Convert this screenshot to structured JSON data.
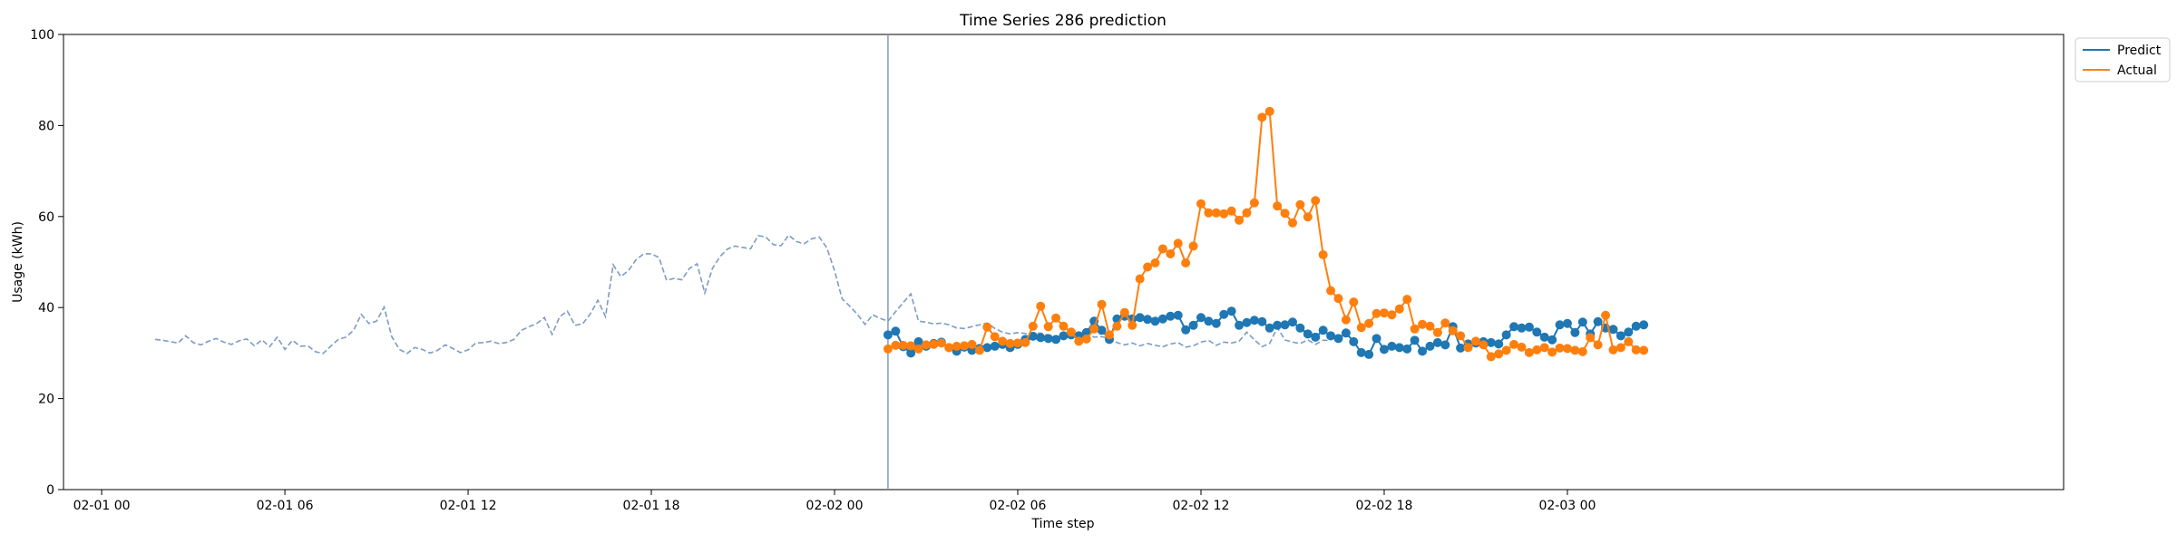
{
  "chart_data": {
    "type": "line",
    "title": "Time Series 286 prediction",
    "xlabel": "Time step",
    "ylabel": "Usage (kWh)",
    "ylim": [
      0,
      100
    ],
    "xlim": [
      "2022-01-31T22:45",
      "2022-02-03T16:15"
    ],
    "yticks": [
      0,
      20,
      40,
      60,
      80,
      100
    ],
    "xticks": [
      {
        "t": "2022-02-01T00:00",
        "label": "02-01 00"
      },
      {
        "t": "2022-02-01T06:00",
        "label": "02-01 06"
      },
      {
        "t": "2022-02-01T12:00",
        "label": "02-01 12"
      },
      {
        "t": "2022-02-01T18:00",
        "label": "02-01 18"
      },
      {
        "t": "2022-02-02T00:00",
        "label": "02-02 00"
      },
      {
        "t": "2022-02-02T06:00",
        "label": "02-02 06"
      },
      {
        "t": "2022-02-02T12:00",
        "label": "02-02 12"
      },
      {
        "t": "2022-02-02T18:00",
        "label": "02-02 18"
      },
      {
        "t": "2022-02-03T00:00",
        "label": "02-03 00"
      }
    ],
    "grid": false,
    "legend_position": "outside top-right",
    "forecast_start": "2022-02-02T01:45",
    "history": {
      "color": "#7d9cc3",
      "style": "dashed",
      "start": "2022-02-01T01:45",
      "step_minutes": 15,
      "values": [
        33.0,
        32.8,
        32.5,
        32.2,
        33.8,
        32.3,
        31.8,
        32.6,
        33.2,
        32.4,
        31.9,
        32.7,
        33.1,
        31.6,
        32.9,
        31.4,
        33.5,
        30.8,
        32.8,
        31.5,
        31.6,
        30.3,
        29.9,
        31.5,
        33.0,
        33.5,
        35.0,
        38.5,
        36.5,
        37.0,
        40.1,
        33.6,
        30.8,
        29.9,
        31.2,
        30.8,
        30.0,
        30.6,
        31.8,
        31.0,
        30.1,
        30.7,
        32.2,
        32.3,
        32.6,
        32.1,
        32.3,
        33.0,
        35.0,
        35.8,
        36.5,
        37.8,
        34.1,
        38.0,
        39.2,
        36.1,
        36.4,
        38.6,
        41.6,
        38.0,
        49.4,
        46.8,
        48.1,
        50.5,
        51.8,
        51.8,
        51.0,
        46.0,
        46.4,
        46.1,
        48.6,
        49.6,
        43.2,
        48.6,
        51.2,
        52.9,
        53.5,
        53.2,
        52.9,
        55.8,
        55.5,
        53.8,
        53.6,
        55.9,
        54.5,
        54.0,
        55.1,
        55.5,
        53.1,
        48.1,
        41.9,
        40.3,
        38.5,
        36.3,
        38.4,
        37.6,
        37.0,
        39.1,
        41.1,
        43.0,
        37.0,
        36.8,
        36.4,
        36.6,
        36.2,
        35.5,
        35.4,
        35.8,
        36.2,
        36.6,
        35.4,
        34.6,
        34.2,
        34.5,
        34.3,
        34.2,
        34.4,
        33.9,
        33.5,
        33.1,
        33.6,
        34.2,
        34.3,
        33.5,
        33.6,
        33.2,
        32.3,
        31.8,
        32.2,
        31.6,
        32.1,
        31.7,
        31.4,
        32.0,
        32.3,
        31.3,
        31.6,
        32.4,
        32.8,
        31.7,
        32.4,
        32.2,
        32.6,
        34.6,
        32.9,
        31.4,
        32.1,
        35.6,
        32.9,
        32.4,
        32.1,
        32.9,
        31.9,
        32.8,
        32.8
      ]
    },
    "forecast_step_minutes": 15,
    "series": [
      {
        "name": "Predict",
        "color": "#1f77b4",
        "values": [
          34.0,
          34.8,
          31.4,
          30.0,
          32.5,
          31.5,
          32.1,
          32.4,
          31.2,
          30.4,
          31.3,
          30.6,
          31.0,
          31.2,
          31.5,
          31.9,
          31.2,
          31.9,
          33.0,
          33.7,
          33.4,
          33.2,
          33.0,
          33.8,
          34.0,
          33.8,
          34.5,
          37.0,
          35.0,
          33.0,
          37.5,
          38.1,
          37.5,
          37.8,
          37.4,
          37.0,
          37.5,
          38.1,
          38.3,
          35.1,
          36.1,
          37.8,
          37.0,
          36.5,
          38.5,
          39.2,
          36.1,
          36.7,
          37.2,
          36.9,
          35.5,
          36.1,
          36.2,
          36.8,
          35.5,
          34.2,
          33.5,
          35.0,
          33.8,
          33.2,
          34.4,
          32.5,
          30.1,
          29.7,
          33.2,
          30.8,
          31.5,
          31.2,
          30.9,
          32.8,
          30.4,
          31.5,
          32.3,
          31.8,
          35.8,
          31.1,
          32.0,
          32.2,
          32.5,
          32.3,
          32.0,
          34.0,
          35.8,
          35.5,
          35.7,
          34.6,
          33.5,
          32.9,
          36.2,
          36.5,
          34.5,
          36.8,
          34.2,
          36.9,
          35.5,
          35.2,
          33.8,
          34.6,
          35.9,
          36.2
        ]
      },
      {
        "name": "Actual",
        "color": "#ff7f0e",
        "values": [
          30.9,
          31.7,
          31.7,
          31.6,
          30.9,
          31.8,
          31.9,
          32.2,
          31.2,
          31.5,
          31.6,
          31.9,
          30.6,
          35.7,
          33.6,
          32.6,
          32.1,
          32.2,
          32.3,
          35.9,
          40.3,
          35.8,
          37.7,
          35.9,
          34.6,
          32.6,
          33.1,
          35.3,
          40.7,
          34.0,
          35.9,
          38.9,
          36.1,
          46.3,
          48.9,
          49.8,
          52.9,
          51.8,
          54.1,
          49.8,
          53.5,
          62.8,
          60.8,
          60.8,
          60.6,
          61.2,
          59.2,
          60.8,
          63.0,
          81.8,
          83.1,
          62.3,
          60.7,
          58.6,
          62.6,
          59.9,
          63.5,
          51.6,
          43.7,
          42.0,
          37.3,
          41.2,
          35.6,
          36.5,
          38.7,
          38.8,
          38.4,
          39.7,
          41.8,
          35.3,
          36.3,
          35.9,
          34.5,
          36.6,
          34.9,
          33.8,
          31.2,
          32.6,
          31.8,
          29.2,
          29.8,
          30.6,
          31.9,
          31.3,
          30.1,
          30.7,
          31.2,
          30.2,
          31.1,
          31.0,
          30.6,
          30.3,
          33.4,
          31.8,
          38.3,
          30.7,
          31.2,
          32.5,
          30.7,
          30.6
        ]
      }
    ]
  }
}
